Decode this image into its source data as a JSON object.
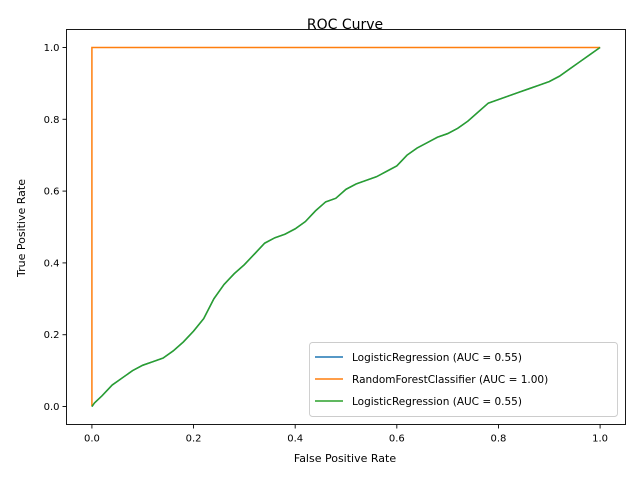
{
  "chart_data": {
    "type": "line",
    "title": "ROC Curve",
    "xlabel": "False Positive Rate",
    "ylabel": "True Positive Rate",
    "xlim": [
      -0.05,
      1.05
    ],
    "ylim": [
      -0.05,
      1.05
    ],
    "xticks": [
      0.0,
      0.2,
      0.4,
      0.6,
      0.8,
      1.0
    ],
    "yticks": [
      0.0,
      0.2,
      0.4,
      0.6,
      0.8,
      1.0
    ],
    "xtick_labels": [
      "0.0",
      "0.2",
      "0.4",
      "0.6",
      "0.8",
      "1.0"
    ],
    "ytick_labels": [
      "0.0",
      "0.2",
      "0.4",
      "0.6",
      "0.8",
      "1.0"
    ],
    "grid": false,
    "legend_position": "lower-right",
    "series": [
      {
        "name": "LogisticRegression (AUC = 0.55)",
        "color": "#1f77b4",
        "x": [
          0.0,
          0.005,
          0.02,
          0.04,
          0.06,
          0.08,
          0.1,
          0.12,
          0.14,
          0.16,
          0.18,
          0.2,
          0.22,
          0.24,
          0.26,
          0.28,
          0.3,
          0.32,
          0.34,
          0.36,
          0.38,
          0.4,
          0.42,
          0.44,
          0.46,
          0.48,
          0.5,
          0.52,
          0.54,
          0.56,
          0.58,
          0.6,
          0.62,
          0.64,
          0.66,
          0.68,
          0.7,
          0.72,
          0.74,
          0.76,
          0.78,
          0.8,
          0.82,
          0.84,
          0.86,
          0.88,
          0.9,
          0.92,
          0.94,
          0.96,
          0.98,
          1.0
        ],
        "y": [
          0.0,
          0.01,
          0.03,
          0.06,
          0.08,
          0.1,
          0.115,
          0.125,
          0.135,
          0.155,
          0.18,
          0.21,
          0.245,
          0.3,
          0.34,
          0.37,
          0.395,
          0.425,
          0.455,
          0.47,
          0.48,
          0.495,
          0.515,
          0.545,
          0.57,
          0.58,
          0.605,
          0.62,
          0.63,
          0.64,
          0.655,
          0.67,
          0.7,
          0.72,
          0.735,
          0.75,
          0.76,
          0.775,
          0.795,
          0.82,
          0.845,
          0.855,
          0.865,
          0.875,
          0.885,
          0.895,
          0.905,
          0.92,
          0.94,
          0.96,
          0.98,
          1.0
        ]
      },
      {
        "name": "RandomForestClassifier (AUC = 1.00)",
        "color": "#ff7f0e",
        "x": [
          0.0,
          0.0,
          1.0
        ],
        "y": [
          0.0,
          1.0,
          1.0
        ]
      },
      {
        "name": "LogisticRegression (AUC = 0.55)",
        "color": "#2ca02c",
        "x": [
          0.0,
          0.005,
          0.02,
          0.04,
          0.06,
          0.08,
          0.1,
          0.12,
          0.14,
          0.16,
          0.18,
          0.2,
          0.22,
          0.24,
          0.26,
          0.28,
          0.3,
          0.32,
          0.34,
          0.36,
          0.38,
          0.4,
          0.42,
          0.44,
          0.46,
          0.48,
          0.5,
          0.52,
          0.54,
          0.56,
          0.58,
          0.6,
          0.62,
          0.64,
          0.66,
          0.68,
          0.7,
          0.72,
          0.74,
          0.76,
          0.78,
          0.8,
          0.82,
          0.84,
          0.86,
          0.88,
          0.9,
          0.92,
          0.94,
          0.96,
          0.98,
          1.0
        ],
        "y": [
          0.0,
          0.01,
          0.03,
          0.06,
          0.08,
          0.1,
          0.115,
          0.125,
          0.135,
          0.155,
          0.18,
          0.21,
          0.245,
          0.3,
          0.34,
          0.37,
          0.395,
          0.425,
          0.455,
          0.47,
          0.48,
          0.495,
          0.515,
          0.545,
          0.57,
          0.58,
          0.605,
          0.62,
          0.63,
          0.64,
          0.655,
          0.67,
          0.7,
          0.72,
          0.735,
          0.75,
          0.76,
          0.775,
          0.795,
          0.82,
          0.845,
          0.855,
          0.865,
          0.875,
          0.885,
          0.895,
          0.905,
          0.92,
          0.94,
          0.96,
          0.98,
          1.0
        ]
      }
    ]
  }
}
